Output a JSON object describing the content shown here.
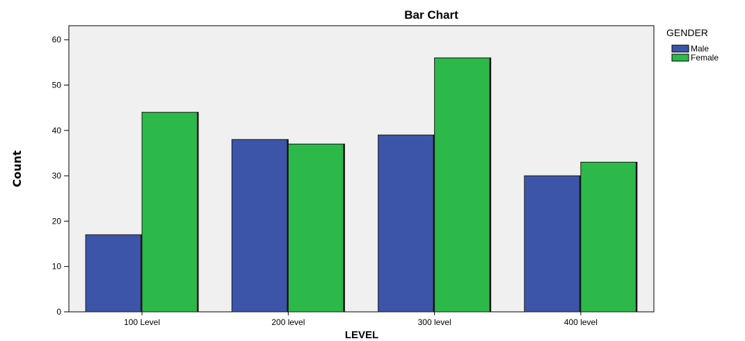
{
  "chart_data": {
    "type": "bar",
    "title": "Bar Chart",
    "xlabel": "LEVEL",
    "ylabel": "Count",
    "categories": [
      "100 Level",
      "200 level",
      "300 level",
      "400 level"
    ],
    "series": [
      {
        "name": "Male",
        "values": [
          17,
          38,
          39,
          30
        ],
        "color": "#3c55a8"
      },
      {
        "name": "Female",
        "values": [
          44,
          37,
          56,
          33
        ],
        "color": "#2db84a"
      }
    ],
    "ylim": [
      0,
      63
    ],
    "yticks": [
      0,
      10,
      20,
      30,
      40,
      50,
      60
    ],
    "legend": {
      "title": "GENDER",
      "placement": "right"
    },
    "plot_background": "#f0f0f0",
    "grid": false
  }
}
